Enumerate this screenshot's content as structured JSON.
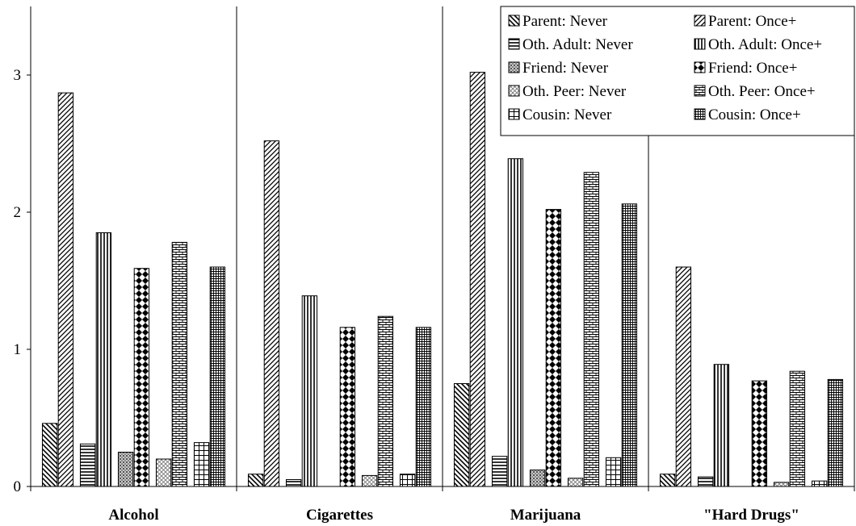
{
  "chart_data": {
    "type": "bar",
    "categories": [
      "Alcohol",
      "Cigarettes",
      "Marijuana",
      "\"Hard Drugs\""
    ],
    "series": [
      {
        "name": "Parent: Never",
        "values": [
          0.46,
          0.09,
          0.75,
          0.09
        ],
        "pattern": "diag-back"
      },
      {
        "name": "Parent: Once+",
        "values": [
          2.87,
          2.52,
          3.02,
          1.6
        ],
        "pattern": "diag-fwd"
      },
      {
        "name": "Oth. Adult: Never",
        "values": [
          0.31,
          0.05,
          0.22,
          0.07
        ],
        "pattern": "horiz"
      },
      {
        "name": "Oth. Adult: Once+",
        "values": [
          1.85,
          1.39,
          2.39,
          0.89
        ],
        "pattern": "vert"
      },
      {
        "name": "Friend: Never",
        "values": [
          0.25,
          0.0,
          0.12,
          0.0
        ],
        "pattern": "dots"
      },
      {
        "name": "Friend: Once+",
        "values": [
          1.59,
          1.16,
          2.02,
          0.77
        ],
        "pattern": "diamonds"
      },
      {
        "name": "Oth. Peer: Never",
        "values": [
          0.2,
          0.08,
          0.06,
          0.03
        ],
        "pattern": "crosshatch"
      },
      {
        "name": "Oth. Peer: Once+",
        "values": [
          1.78,
          1.24,
          2.29,
          0.84
        ],
        "pattern": "bricks"
      },
      {
        "name": "Cousin: Never",
        "values": [
          0.32,
          0.09,
          0.21,
          0.04
        ],
        "pattern": "grid-large"
      },
      {
        "name": "Cousin: Once+",
        "values": [
          1.6,
          1.16,
          2.06,
          0.78
        ],
        "pattern": "grid-small"
      }
    ],
    "ylim": [
      0,
      3.5
    ],
    "yticks": [
      "0",
      "1",
      "2",
      "3"
    ],
    "xlabel": "",
    "ylabel": "",
    "legend_position": "top-right",
    "grid": false
  }
}
